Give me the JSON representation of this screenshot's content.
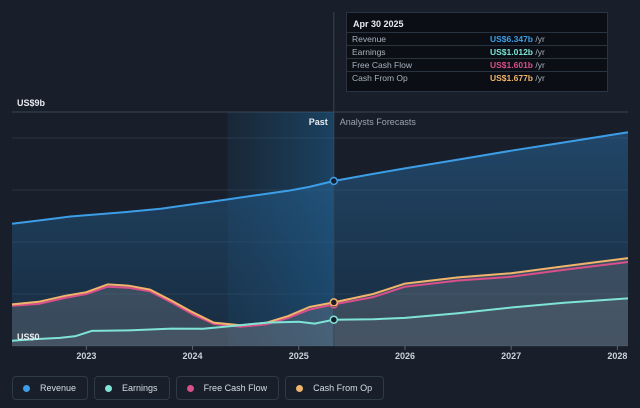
{
  "chart_data": {
    "type": "area",
    "ylabel_top": "US$9b",
    "ylabel_bottom": "US$0",
    "ylim": [
      0,
      9
    ],
    "xlim": [
      2022.3,
      2028.1
    ],
    "x_ticks": [
      "2023",
      "2024",
      "2025",
      "2026",
      "2027",
      "2028"
    ],
    "past_label": "Past",
    "forecast_label": "Analysts Forecasts",
    "split_x": 2025.33,
    "shade_start_x": 2024.33,
    "series": [
      {
        "name": "Revenue",
        "color": "#3d9ee8",
        "points": [
          [
            2022.3,
            4.7
          ],
          [
            2022.6,
            4.85
          ],
          [
            2022.85,
            4.98
          ],
          [
            2023.1,
            5.06
          ],
          [
            2023.4,
            5.16
          ],
          [
            2023.7,
            5.28
          ],
          [
            2024.0,
            5.45
          ],
          [
            2024.3,
            5.62
          ],
          [
            2024.6,
            5.8
          ],
          [
            2024.9,
            5.97
          ],
          [
            2025.1,
            6.12
          ],
          [
            2025.33,
            6.347
          ],
          [
            2025.7,
            6.62
          ],
          [
            2026.0,
            6.83
          ],
          [
            2026.5,
            7.17
          ],
          [
            2027.0,
            7.51
          ],
          [
            2027.5,
            7.83
          ],
          [
            2028.1,
            8.22
          ]
        ]
      },
      {
        "name": "Earnings",
        "color": "#7fe3d6",
        "points": [
          [
            2022.3,
            0.2
          ],
          [
            2022.5,
            0.26
          ],
          [
            2022.75,
            0.31
          ],
          [
            2022.9,
            0.38
          ],
          [
            2023.05,
            0.58
          ],
          [
            2023.4,
            0.6
          ],
          [
            2023.8,
            0.67
          ],
          [
            2024.1,
            0.66
          ],
          [
            2024.35,
            0.76
          ],
          [
            2024.7,
            0.9
          ],
          [
            2025.0,
            0.93
          ],
          [
            2025.15,
            0.86
          ],
          [
            2025.33,
            1.012
          ],
          [
            2025.7,
            1.03
          ],
          [
            2026.0,
            1.08
          ],
          [
            2026.5,
            1.26
          ],
          [
            2027.0,
            1.48
          ],
          [
            2027.5,
            1.66
          ],
          [
            2028.1,
            1.83
          ]
        ]
      },
      {
        "name": "Free Cash Flow",
        "color": "#d94f8a",
        "points": [
          [
            2022.3,
            1.55
          ],
          [
            2022.55,
            1.62
          ],
          [
            2022.8,
            1.85
          ],
          [
            2023.0,
            2.0
          ],
          [
            2023.2,
            2.28
          ],
          [
            2023.4,
            2.24
          ],
          [
            2023.6,
            2.1
          ],
          [
            2023.8,
            1.68
          ],
          [
            2024.0,
            1.22
          ],
          [
            2024.2,
            0.85
          ],
          [
            2024.45,
            0.74
          ],
          [
            2024.7,
            0.84
          ],
          [
            2024.9,
            1.08
          ],
          [
            2025.1,
            1.4
          ],
          [
            2025.33,
            1.601
          ],
          [
            2025.7,
            1.88
          ],
          [
            2026.0,
            2.28
          ],
          [
            2026.5,
            2.52
          ],
          [
            2027.0,
            2.66
          ],
          [
            2027.5,
            2.93
          ],
          [
            2028.1,
            3.23
          ]
        ]
      },
      {
        "name": "Cash From Op",
        "color": "#f1b46b",
        "points": [
          [
            2022.3,
            1.6
          ],
          [
            2022.55,
            1.7
          ],
          [
            2022.8,
            1.93
          ],
          [
            2023.0,
            2.07
          ],
          [
            2023.2,
            2.37
          ],
          [
            2023.4,
            2.32
          ],
          [
            2023.6,
            2.17
          ],
          [
            2023.8,
            1.75
          ],
          [
            2024.0,
            1.3
          ],
          [
            2024.2,
            0.9
          ],
          [
            2024.45,
            0.8
          ],
          [
            2024.7,
            0.9
          ],
          [
            2024.9,
            1.15
          ],
          [
            2025.1,
            1.5
          ],
          [
            2025.33,
            1.677
          ],
          [
            2025.7,
            2.0
          ],
          [
            2026.0,
            2.4
          ],
          [
            2026.5,
            2.64
          ],
          [
            2027.0,
            2.8
          ],
          [
            2027.5,
            3.07
          ],
          [
            2028.1,
            3.38
          ]
        ]
      }
    ]
  },
  "tooltip": {
    "date": "Apr 30 2025",
    "rows": [
      {
        "label": "Revenue",
        "value": "US$6.347b",
        "unit": " /yr",
        "color": "#3d9ee8"
      },
      {
        "label": "Earnings",
        "value": "US$1.012b",
        "unit": " /yr",
        "color": "#7fe3d6"
      },
      {
        "label": "Free Cash Flow",
        "value": "US$1.601b",
        "unit": " /yr",
        "color": "#d94f8a"
      },
      {
        "label": "Cash From Op",
        "value": "US$1.677b",
        "unit": " /yr",
        "color": "#f1b46b"
      }
    ]
  },
  "legend": [
    {
      "label": "Revenue",
      "color": "#3d9ee8"
    },
    {
      "label": "Earnings",
      "color": "#7fe3d6"
    },
    {
      "label": "Free Cash Flow",
      "color": "#d94f8a"
    },
    {
      "label": "Cash From Op",
      "color": "#f1b46b"
    }
  ]
}
